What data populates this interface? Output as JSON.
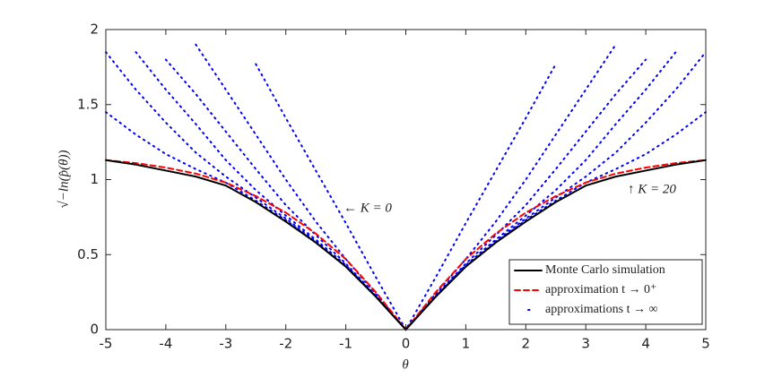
{
  "chart_data": {
    "type": "line",
    "x_label": "θ",
    "y_label": "√−ln(p̂(θ))",
    "annotations": [
      "← K = 0",
      "↑ K = 20"
    ],
    "x": [
      -5,
      -4.5,
      -4,
      -3.5,
      -3,
      -2.5,
      -2,
      -1.5,
      -1,
      -0.5,
      0,
      0.5,
      1,
      1.5,
      2,
      2.5,
      3,
      3.5,
      4,
      4.5,
      5
    ],
    "xlim": [
      -5,
      5
    ],
    "xticks": [
      -5,
      -4,
      -3,
      -2,
      -1,
      0,
      1,
      2,
      3,
      4,
      5
    ],
    "ylim": [
      0,
      2
    ],
    "yticks": [
      0,
      0.5,
      1,
      1.5,
      2
    ],
    "series": [
      {
        "name": "Monte Carlo simulation",
        "color": "#000000",
        "style": "solid",
        "values": [
          1.13,
          1.1,
          1.06,
          1.02,
          0.96,
          0.85,
          0.72,
          0.58,
          0.42,
          0.22,
          0,
          0.22,
          0.42,
          0.58,
          0.72,
          0.85,
          0.96,
          1.02,
          1.06,
          1.1,
          1.13
        ]
      },
      {
        "name": "approximation t → 0⁺",
        "color": "#ff0000",
        "style": "dashed",
        "values": [
          1.13,
          1.11,
          1.08,
          1.04,
          0.98,
          0.89,
          0.78,
          0.64,
          0.47,
          0.25,
          0,
          0.25,
          0.47,
          0.64,
          0.78,
          0.89,
          0.98,
          1.04,
          1.08,
          1.11,
          1.13
        ]
      },
      {
        "name": "approximations t → ∞",
        "color": "#0000ff",
        "style": "dotted",
        "curves": [
          [
            null,
            null,
            null,
            null,
            null,
            1.77,
            1.41,
            1.06,
            0.71,
            0.35,
            0,
            0.35,
            0.71,
            1.06,
            1.41,
            1.77,
            null,
            null,
            null,
            null,
            null
          ],
          [
            null,
            null,
            null,
            1.9,
            1.6,
            1.3,
            1.0,
            0.72,
            0.47,
            0.24,
            0,
            0.24,
            0.47,
            0.72,
            1.0,
            1.3,
            1.6,
            1.9,
            null,
            null,
            null
          ],
          [
            null,
            null,
            1.8,
            1.57,
            1.32,
            1.07,
            0.83,
            0.63,
            0.44,
            0.23,
            0,
            0.23,
            0.44,
            0.63,
            0.83,
            1.07,
            1.32,
            1.57,
            1.8,
            null,
            null
          ],
          [
            null,
            1.85,
            1.6,
            1.37,
            1.13,
            0.93,
            0.76,
            0.6,
            0.43,
            0.22,
            0,
            0.22,
            0.43,
            0.6,
            0.76,
            0.93,
            1.13,
            1.37,
            1.6,
            1.85,
            null
          ],
          [
            1.85,
            1.6,
            1.38,
            1.18,
            1.02,
            0.88,
            0.74,
            0.59,
            0.42,
            0.22,
            0,
            0.22,
            0.42,
            0.59,
            0.74,
            0.88,
            1.02,
            1.18,
            1.38,
            1.6,
            1.85
          ],
          [
            1.45,
            1.3,
            1.17,
            1.07,
            0.98,
            0.86,
            0.73,
            0.58,
            0.42,
            0.22,
            0,
            0.22,
            0.42,
            0.58,
            0.73,
            0.86,
            0.98,
            1.07,
            1.17,
            1.3,
            1.45
          ]
        ]
      }
    ]
  }
}
